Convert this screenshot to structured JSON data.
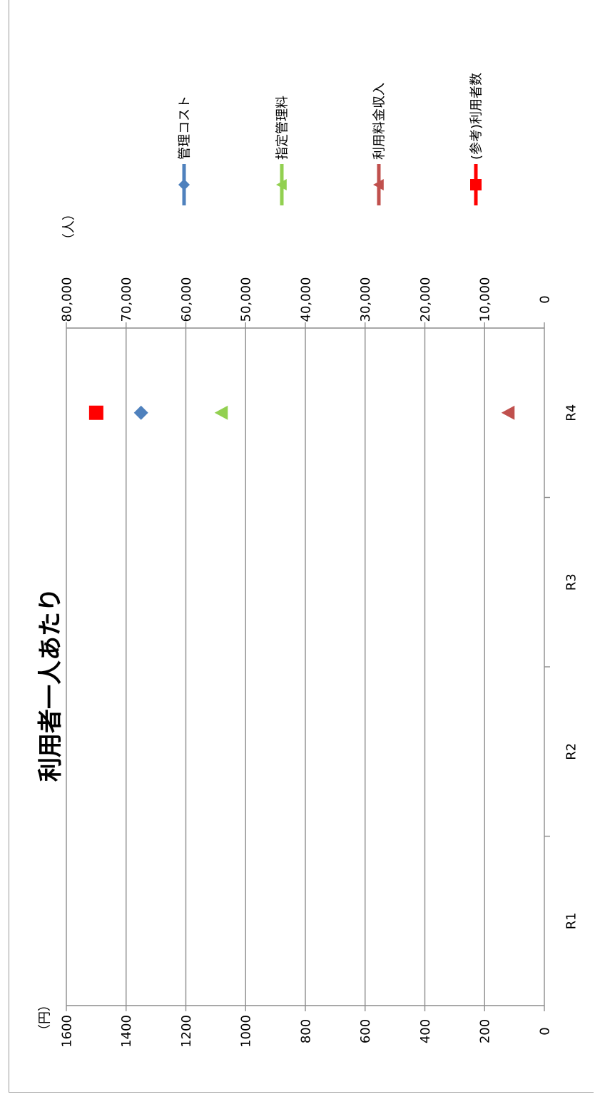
{
  "chart_data": {
    "type": "scatter",
    "title": "利用者一人あたり",
    "orientation": "rotated-90-clockwise",
    "categories": [
      "R1",
      "R2",
      "R3",
      "R4"
    ],
    "y_left": {
      "unit_label": "（円）",
      "ylim": [
        0,
        1600
      ],
      "ticks": [
        "0",
        "200",
        "400",
        "600",
        "800",
        "1000",
        "1200",
        "1400",
        "1600"
      ]
    },
    "y_right": {
      "unit_label": "（人）",
      "ylim": [
        0,
        80000
      ],
      "ticks": [
        "0",
        "10,000",
        "20,000",
        "30,000",
        "40,000",
        "50,000",
        "60,000",
        "70,000",
        "80,000"
      ]
    },
    "grid": true,
    "legend_position": "right",
    "series": [
      {
        "name": "管理コスト",
        "axis": "left",
        "marker": "diamond",
        "color": "#4f81bd",
        "values": [
          null,
          null,
          null,
          1350
        ]
      },
      {
        "name": "指定管理料",
        "axis": "left",
        "marker": "triangle",
        "color": "#92d050",
        "values": [
          null,
          null,
          null,
          1080
        ]
      },
      {
        "name": "利用料金収入",
        "axis": "left",
        "marker": "triangle",
        "color": "#c0504d",
        "values": [
          null,
          null,
          null,
          120
        ]
      },
      {
        "name": "(参考)利用者数",
        "axis": "right",
        "marker": "square",
        "color": "#ff0000",
        "values": [
          null,
          null,
          null,
          75000
        ]
      }
    ]
  }
}
